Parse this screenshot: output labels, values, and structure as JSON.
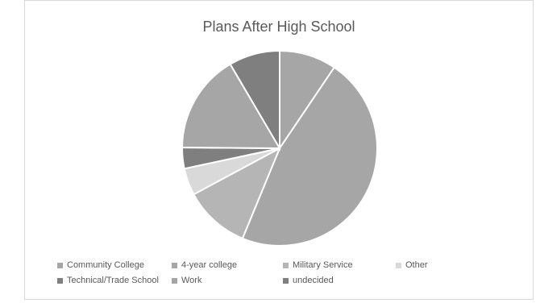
{
  "chart_data": {
    "type": "pie",
    "title": "Plans After High School",
    "categories": [
      "Community College",
      "4-year college",
      "Military Service",
      "Other",
      "Technical/Trade School",
      "Work",
      "undecided"
    ],
    "values": [
      9.5,
      47.0,
      11.0,
      4.5,
      3.5,
      16.5,
      8.5
    ],
    "colors": [
      "#a6a6a6",
      "#a6a6a6",
      "#b5b5b5",
      "#d9d9d9",
      "#7f7f7f",
      "#a6a6a6",
      "#7f7f7f"
    ],
    "slice_order": [
      "Community College",
      "4-year college",
      "Military Service",
      "Other",
      "Technical/Trade School",
      "Work",
      "undecided"
    ],
    "start_angle_deg": 0,
    "direction": "clockwise",
    "legend_position": "bottom"
  }
}
